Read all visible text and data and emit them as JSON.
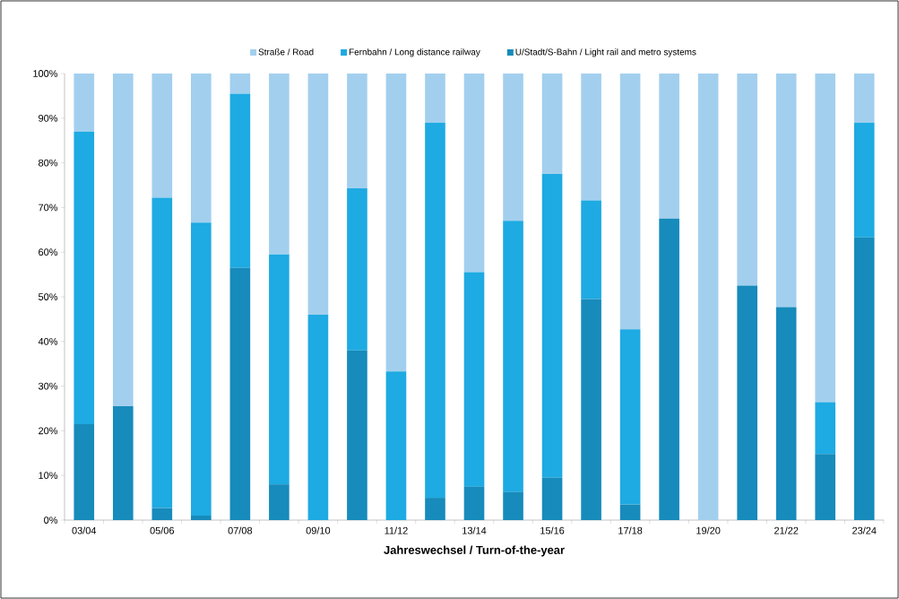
{
  "chart_data": {
    "type": "bar",
    "stacked": true,
    "xlabel": "Jahreswechsel / Turn-of-the-year",
    "categories": [
      "03/04",
      null,
      "05/06",
      null,
      "07/08",
      null,
      "09/10",
      null,
      "11/12",
      null,
      "13/14",
      null,
      "15/16",
      null,
      "17/18",
      null,
      "19/20",
      null,
      "21/22",
      null,
      "23/24"
    ],
    "series": [
      {
        "name": "U/Stadt/S-Bahn / Light rail and metro systems",
        "color": "#178bbb",
        "values": [
          21.5,
          25.5,
          2.7,
          1,
          56.5,
          8,
          0,
          38,
          0,
          5,
          7.5,
          6.3,
          9.5,
          49.5,
          3.5,
          67.5,
          0,
          52.5,
          47.7,
          14.8,
          63.3
        ]
      },
      {
        "name": "Fernbahn / Long distance railway",
        "color": "#1eaae2",
        "values": [
          65.5,
          0,
          69.5,
          65.6,
          39,
          51.5,
          46,
          36.3,
          33.3,
          84,
          48,
          60.7,
          68,
          22.1,
          39.2,
          0,
          0,
          0,
          0,
          11.6,
          25.7
        ]
      },
      {
        "name": "Straße / Road",
        "color": "#a3cfee",
        "values": [
          13,
          74.5,
          27.8,
          33.4,
          4.5,
          40.5,
          54,
          25.7,
          66.7,
          11,
          44.5,
          33,
          22.5,
          28.4,
          57.3,
          32.5,
          100,
          47.5,
          52.3,
          73.6,
          11
        ]
      }
    ],
    "ylim": [
      0,
      100
    ],
    "yticks": [
      {
        "value": 0,
        "label": "0%"
      },
      {
        "value": 10,
        "label": "10%"
      },
      {
        "value": 20,
        "label": "20%"
      },
      {
        "value": 30,
        "label": "30%"
      },
      {
        "value": 40,
        "label": "40%"
      },
      {
        "value": 50,
        "label": "50%"
      },
      {
        "value": 60,
        "label": "60%"
      },
      {
        "value": 70,
        "label": "70%"
      },
      {
        "value": 80,
        "label": "80%"
      },
      {
        "value": 90,
        "label": "90%"
      },
      {
        "value": 100,
        "label": "100%"
      }
    ],
    "grid": false,
    "legend": "top"
  }
}
